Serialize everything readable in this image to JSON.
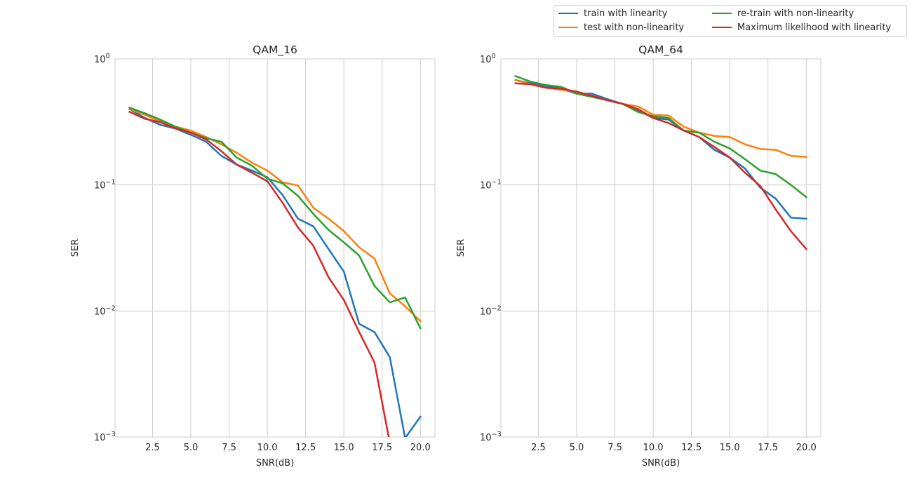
{
  "chart_data": [
    {
      "type": "line",
      "title": "QAM_16",
      "xlabel": "SNR(dB)",
      "ylabel": "SER",
      "yscale": "log",
      "xlim": [
        0.05,
        20.95
      ],
      "ylim": [
        0.001,
        1
      ],
      "xticks": [
        2.5,
        5.0,
        7.5,
        10.0,
        12.5,
        15.0,
        17.5,
        20.0
      ],
      "xtick_labels": [
        "2.5",
        "5.0",
        "7.5",
        "10.0",
        "12.5",
        "15.0",
        "17.5",
        "20.0"
      ],
      "yticks": [
        0.001,
        0.01,
        0.1,
        1
      ],
      "ytick_labels": [
        {
          "base": "10",
          "exp": "−3"
        },
        {
          "base": "10",
          "exp": "−2"
        },
        {
          "base": "10",
          "exp": "−1"
        },
        {
          "base": "10",
          "exp": "0"
        }
      ],
      "grid": true,
      "x": [
        1,
        2,
        3,
        4,
        5,
        6,
        7,
        8,
        9,
        10,
        11,
        12,
        13,
        14,
        15,
        16,
        17,
        18,
        19,
        20
      ],
      "series": [
        {
          "name": "train with linearity",
          "color": "#1f77b4",
          "values": [
            0.4,
            0.34,
            0.3,
            0.28,
            0.25,
            0.22,
            0.17,
            0.145,
            0.13,
            0.115,
            0.083,
            0.054,
            0.047,
            0.031,
            0.0205,
            0.0079,
            0.0068,
            0.0043,
            0.00098,
            0.00145
          ]
        },
        {
          "name": "test with non-linearity",
          "color": "#ff7f0e",
          "values": [
            0.4,
            0.36,
            0.32,
            0.29,
            0.27,
            0.24,
            0.21,
            0.18,
            0.15,
            0.13,
            0.105,
            0.099,
            0.066,
            0.054,
            0.043,
            0.032,
            0.026,
            0.0138,
            0.0109,
            0.0083
          ]
        },
        {
          "name": "re-train with non-linearity",
          "color": "#2ca02c",
          "values": [
            0.41,
            0.37,
            0.33,
            0.29,
            0.26,
            0.235,
            0.22,
            0.165,
            0.142,
            0.112,
            0.103,
            0.082,
            0.059,
            0.044,
            0.035,
            0.0275,
            0.0158,
            0.0117,
            0.0128,
            0.0073
          ]
        },
        {
          "name": "Maximum likelihood with linearity",
          "color": "#d62728",
          "values": [
            0.38,
            0.335,
            0.315,
            0.28,
            0.26,
            0.23,
            0.185,
            0.145,
            0.125,
            0.107,
            0.072,
            0.046,
            0.033,
            0.0185,
            0.0122,
            0.0068,
            0.0039,
            0.0009,
            0.0009,
            0.0009
          ]
        }
      ]
    },
    {
      "type": "line",
      "title": "QAM_64",
      "xlabel": "SNR(dB)",
      "ylabel": "SER",
      "yscale": "log",
      "xlim": [
        0.05,
        20.95
      ],
      "ylim": [
        0.001,
        1
      ],
      "xticks": [
        2.5,
        5.0,
        7.5,
        10.0,
        12.5,
        15.0,
        17.5,
        20.0
      ],
      "xtick_labels": [
        "2.5",
        "5.0",
        "7.5",
        "10.0",
        "12.5",
        "15.0",
        "17.5",
        "20.0"
      ],
      "yticks": [
        0.001,
        0.01,
        0.1,
        1
      ],
      "ytick_labels": [
        {
          "base": "10",
          "exp": "−3"
        },
        {
          "base": "10",
          "exp": "−2"
        },
        {
          "base": "10",
          "exp": "−1"
        },
        {
          "base": "10",
          "exp": "0"
        }
      ],
      "grid": true,
      "x": [
        1,
        2,
        3,
        4,
        5,
        6,
        7,
        8,
        9,
        10,
        11,
        12,
        13,
        14,
        15,
        16,
        17,
        18,
        19,
        20
      ],
      "series": [
        {
          "name": "train with linearity",
          "color": "#1f77b4",
          "values": [
            0.68,
            0.64,
            0.61,
            0.58,
            0.53,
            0.53,
            0.48,
            0.44,
            0.39,
            0.34,
            0.33,
            0.27,
            0.24,
            0.19,
            0.165,
            0.135,
            0.095,
            0.078,
            0.055,
            0.054
          ]
        },
        {
          "name": "test with non-linearity",
          "color": "#ff7f0e",
          "values": [
            0.68,
            0.63,
            0.59,
            0.57,
            0.55,
            0.51,
            0.47,
            0.44,
            0.42,
            0.36,
            0.355,
            0.29,
            0.26,
            0.245,
            0.24,
            0.21,
            0.193,
            0.19,
            0.17,
            0.167
          ]
        },
        {
          "name": "re-train with non-linearity",
          "color": "#2ca02c",
          "values": [
            0.73,
            0.66,
            0.62,
            0.6,
            0.53,
            0.5,
            0.47,
            0.44,
            0.38,
            0.35,
            0.34,
            0.27,
            0.26,
            0.22,
            0.195,
            0.16,
            0.13,
            0.122,
            0.1,
            0.08
          ]
        },
        {
          "name": "Maximum likelihood with linearity",
          "color": "#d62728",
          "values": [
            0.64,
            0.63,
            0.59,
            0.58,
            0.55,
            0.51,
            0.47,
            0.44,
            0.4,
            0.34,
            0.31,
            0.27,
            0.24,
            0.2,
            0.165,
            0.125,
            0.098,
            0.064,
            0.043,
            0.031
          ]
        }
      ]
    }
  ],
  "legend": {
    "placement": "top-right",
    "items": [
      {
        "label": "train with linearity",
        "color": "#1f77b4"
      },
      {
        "label": "test with non-linearity",
        "color": "#ff7f0e"
      },
      {
        "label": "re-train with non-linearity",
        "color": "#2ca02c"
      },
      {
        "label": "Maximum likelihood with linearity",
        "color": "#d62728"
      }
    ]
  }
}
